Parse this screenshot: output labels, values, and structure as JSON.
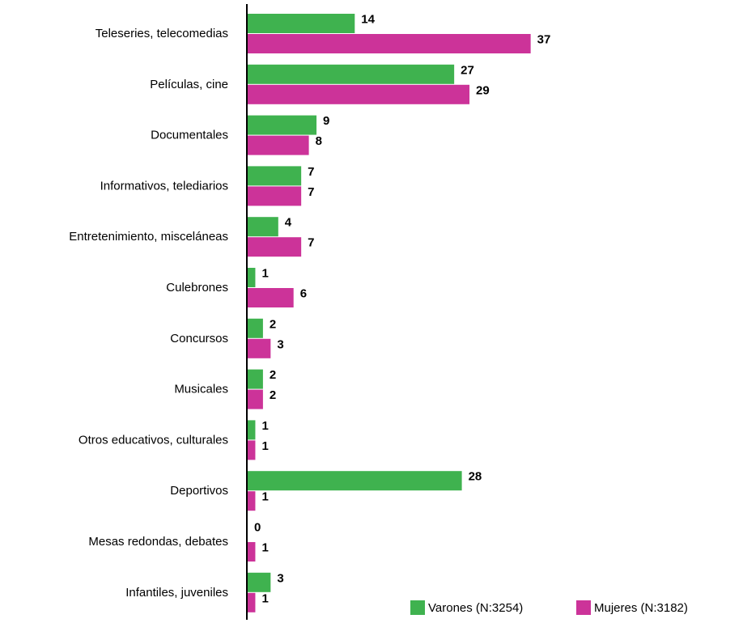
{
  "chart_data": {
    "type": "hbar",
    "categories": [
      "Teleseries, telecomedias",
      "Películas, cine",
      "Documentales",
      "Informativos, telediarios",
      "Entretenimiento, misceláneas",
      "Culebrones",
      "Concursos",
      "Musicales",
      "Otros educativos, culturales",
      "Deportivos",
      "Mesas redondas, debates",
      "Infantiles, juveniles"
    ],
    "series": [
      {
        "name": "Varones (N:3254)",
        "color": "#3fb24f",
        "values": [
          14,
          27,
          9,
          7,
          4,
          1,
          2,
          2,
          1,
          28,
          0,
          3
        ]
      },
      {
        "name": "Mujeres (N:3182)",
        "color": "#cc3399",
        "values": [
          37,
          29,
          8,
          7,
          7,
          6,
          3,
          2,
          1,
          1,
          1,
          1
        ]
      }
    ],
    "legend": "bottom-right"
  }
}
